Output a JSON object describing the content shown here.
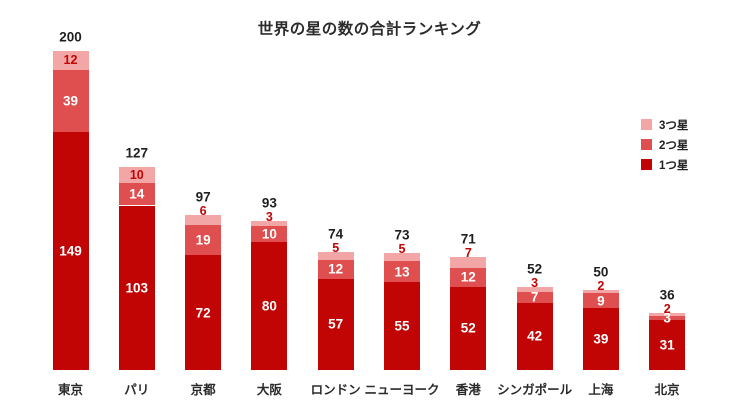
{
  "title": "世界の星の数の合計ランキング",
  "colors": {
    "one_star": "#c10505",
    "two_star": "#e04f4f",
    "three_star": "#f2a6a6",
    "three_star_label_text": "#c10505",
    "segment_label_text": "#ffffff",
    "total_label_text": "#1f1f1f",
    "city_label_text": "#2a2a2a",
    "background": "#ffffff"
  },
  "legend": {
    "items": [
      {
        "label": "3つ星",
        "color_key": "three_star"
      },
      {
        "label": "2つ星",
        "color_key": "two_star"
      },
      {
        "label": "1つ星",
        "color_key": "one_star"
      }
    ]
  },
  "chart_data": {
    "type": "bar",
    "stacked": true,
    "orientation": "vertical",
    "title": "世界の星の数の合計ランキング",
    "categories": [
      "東京",
      "パリ",
      "京都",
      "大阪",
      "ロンドン",
      "ニューヨーク",
      "香港",
      "シンガポール",
      "上海",
      "北京"
    ],
    "series": [
      {
        "name": "1つ星",
        "values": [
          149,
          103,
          72,
          80,
          57,
          55,
          52,
          42,
          39,
          31
        ]
      },
      {
        "name": "2つ星",
        "values": [
          39,
          14,
          19,
          10,
          12,
          13,
          12,
          7,
          9,
          3
        ]
      },
      {
        "name": "3つ星",
        "values": [
          12,
          10,
          6,
          3,
          5,
          5,
          7,
          3,
          2,
          2
        ]
      }
    ],
    "totals": [
      200,
      127,
      97,
      93,
      74,
      73,
      71,
      52,
      50,
      36
    ],
    "ylim": [
      0,
      200
    ],
    "grid": false,
    "axis_lines": false,
    "legend_position": "right",
    "value_labels": "inside-segments",
    "total_labels": "above-bars"
  }
}
